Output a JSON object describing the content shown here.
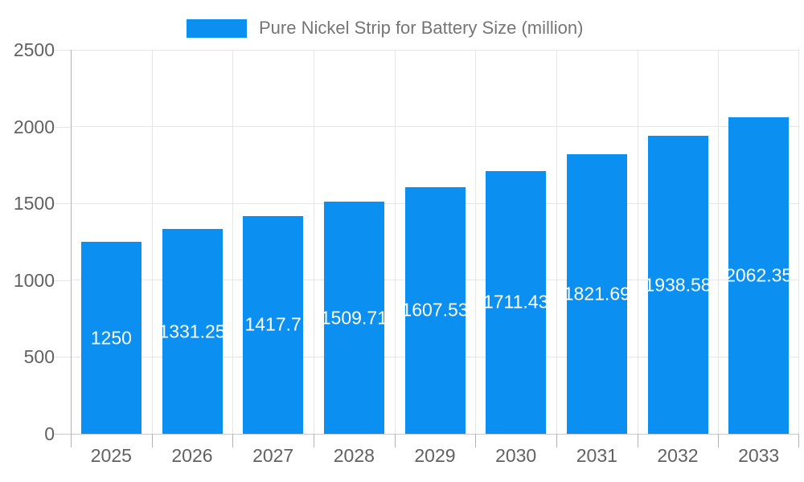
{
  "legend": {
    "label": "Pure Nickel Strip for Battery Size (million)"
  },
  "chart_data": {
    "type": "bar",
    "title": "Pure Nickel Strip for Battery Size (million)",
    "categories": [
      "2025",
      "2026",
      "2027",
      "2028",
      "2029",
      "2030",
      "2031",
      "2032",
      "2033"
    ],
    "values": [
      1250,
      1331.25,
      1417.7,
      1509.71,
      1607.53,
      1711.43,
      1821.69,
      1938.58,
      2062.35
    ],
    "bar_labels": [
      "1250",
      "1331.25",
      "1417.7",
      "1509.71",
      "1607.53",
      "1711.43",
      "1821.69",
      "1938.58",
      "2062.35"
    ],
    "xlabel": "",
    "ylabel": "",
    "ylim": [
      0,
      2500
    ],
    "ytick_labels": [
      "0",
      "500",
      "1000",
      "1500",
      "2000",
      "2500"
    ],
    "grid": true,
    "legend_position": "top",
    "colors": {
      "bar": "#0b90f2",
      "bar_label": "#ffffff",
      "axis_text": "#616161",
      "legend_text": "#757575",
      "gridline": "#e6e6e6",
      "baseline": "#c9c9c9",
      "axis_line": "#b3b3b3"
    }
  }
}
